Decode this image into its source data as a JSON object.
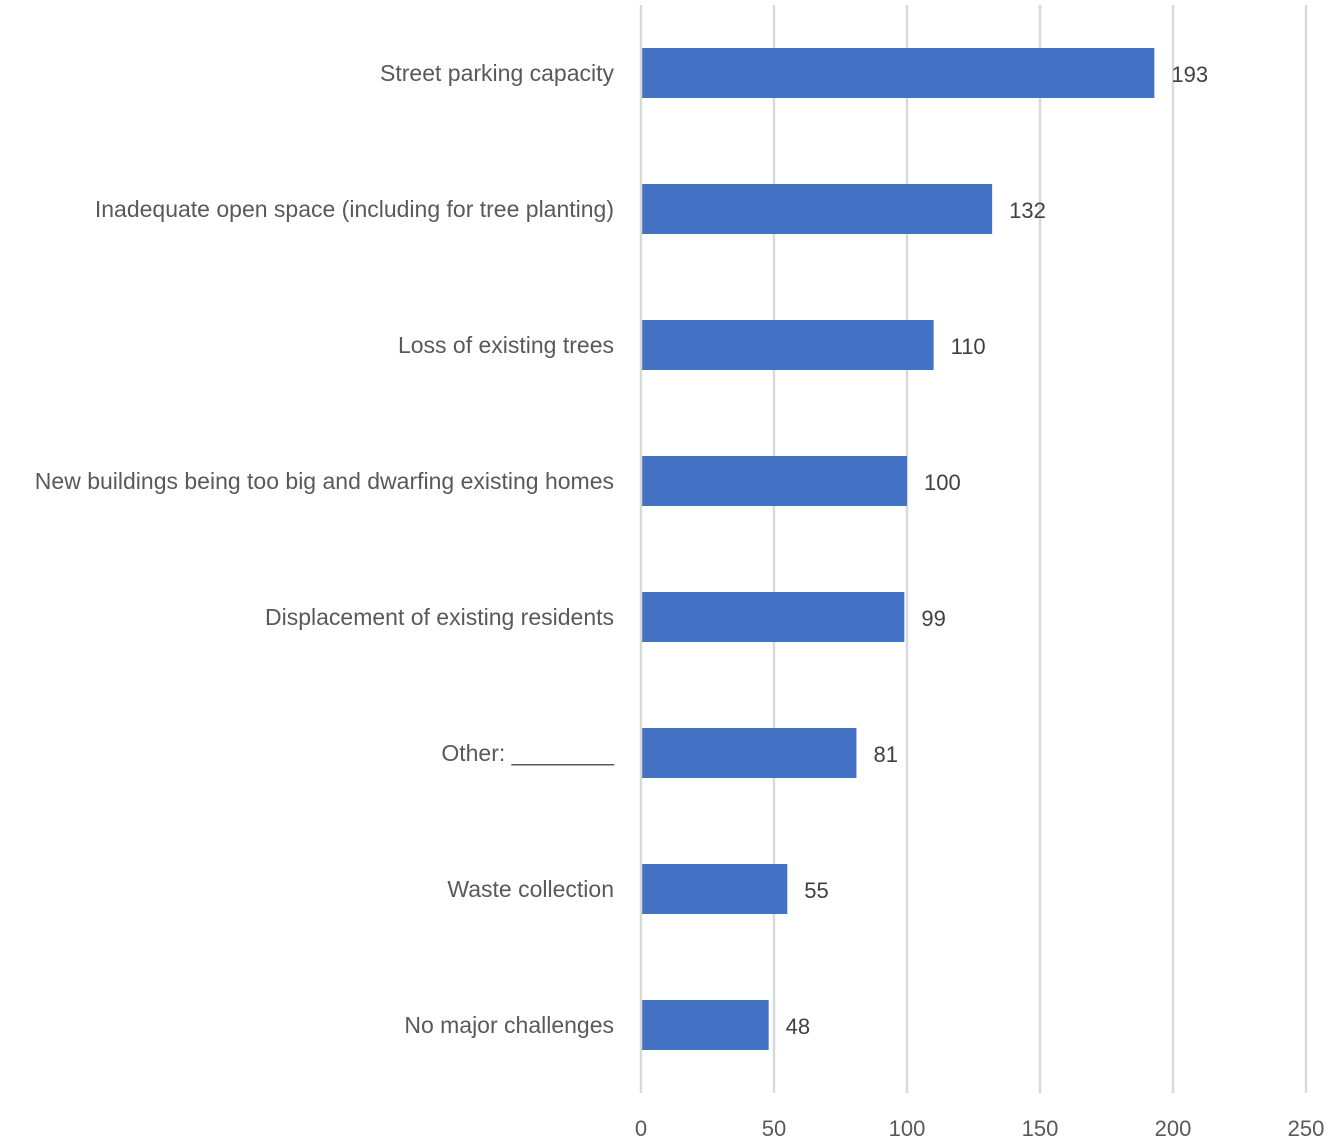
{
  "chart_data": {
    "type": "bar",
    "orientation": "horizontal",
    "categories": [
      "Street parking capacity",
      "Inadequate open space (including for tree planting)",
      "Loss of existing trees",
      "New buildings being too big and dwarfing existing homes",
      "Displacement of existing residents",
      "Other: ________",
      "Waste collection",
      "No major challenges"
    ],
    "values": [
      193,
      132,
      110,
      100,
      99,
      81,
      55,
      48
    ],
    "data_labels": [
      "193",
      "132",
      "110",
      "100",
      "99",
      "81",
      "55",
      "48"
    ],
    "xlim": [
      0,
      250
    ],
    "x_ticks": [
      0,
      50,
      100,
      150,
      200,
      250
    ],
    "x_tick_labels": [
      "0",
      "50",
      "100",
      "150",
      "200",
      "250"
    ],
    "grid": "vertical",
    "legend": "none",
    "bar_color": "#4472c4",
    "title": "",
    "xlabel": "",
    "ylabel": ""
  }
}
